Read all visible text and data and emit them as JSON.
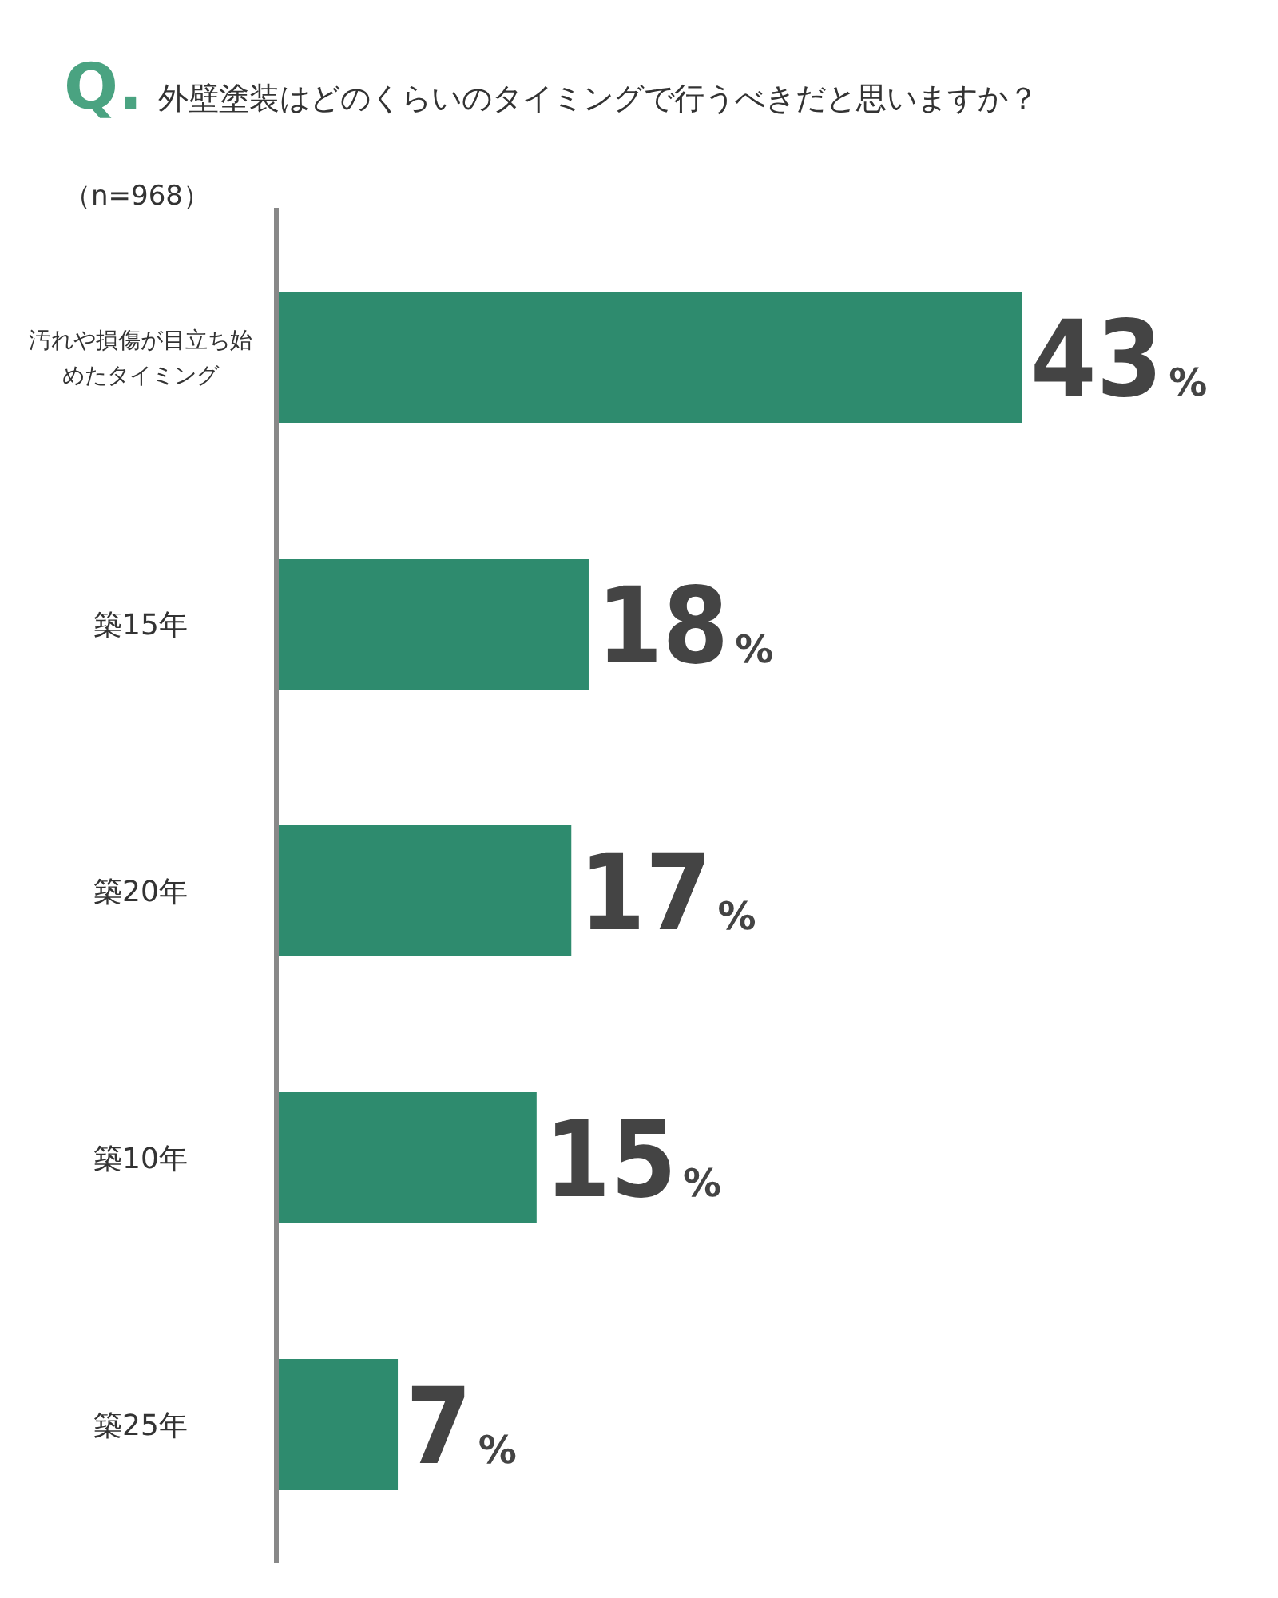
{
  "chart_data": {
    "type": "bar",
    "orientation": "horizontal",
    "title": "Q.外壁塗装はどのくらいのタイミングで行うべきだと思いますか？",
    "subtitle": "（n=968）",
    "categories": [
      "汚れや損傷が目立ち始めたタイミング",
      "築15年",
      "築20年",
      "築10年",
      "築25年"
    ],
    "values": [
      43,
      18,
      17,
      15,
      7
    ],
    "value_labels": [
      "43%",
      "18%",
      "17%",
      "15%",
      "7%"
    ],
    "color": "#2e8b6e"
  }
}
